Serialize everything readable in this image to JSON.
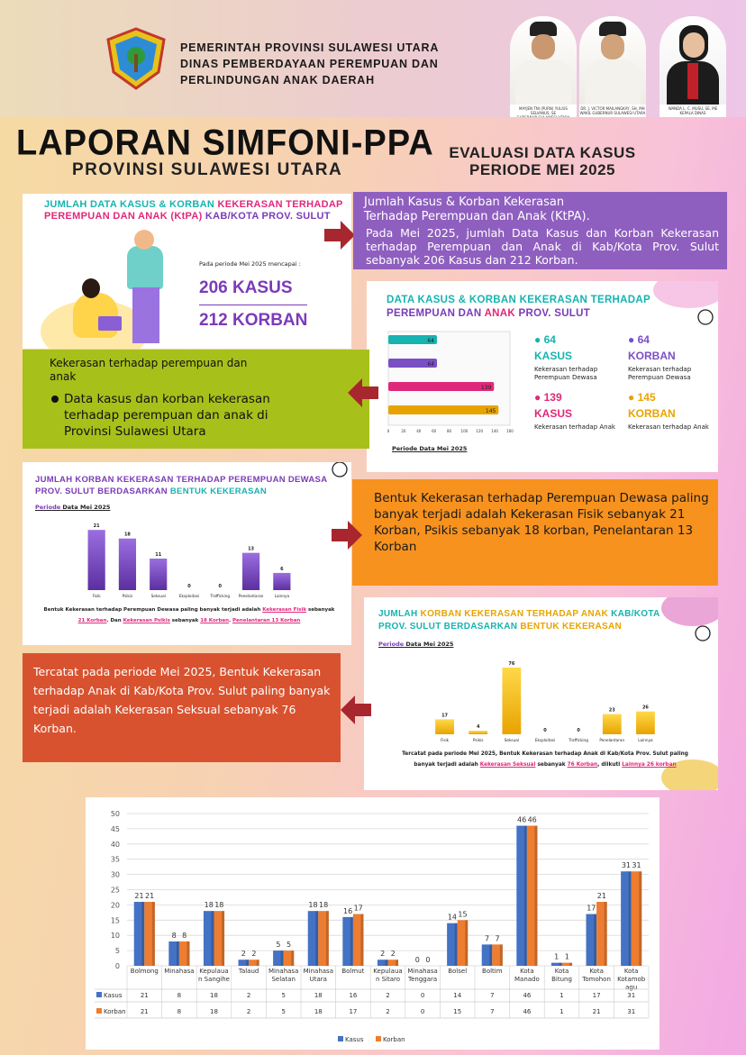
{
  "header": {
    "line1": "PEMERINTAH PROVINSI SULAWESI UTARA",
    "line2": "DINAS PEMBERDAYAAN PEREMPUAN DAN",
    "line3": "PERLINDUNGAN ANAK DAERAH",
    "officials": [
      {
        "name": "MAYJEN TNI (PURN) YULIUS SELVANUS, SE",
        "role": "GUBERNUR SULAWESI UTARA"
      },
      {
        "name": "DR. J. VICTOR MAILANGKAY, SH, MH",
        "role": "WAKIL GUBERNUR SULAWESI UTARA"
      },
      {
        "name": "WANDA L. C. MUSU, SE, ME",
        "role": "KEPALA DINAS"
      }
    ]
  },
  "title": {
    "main": "LAPORAN SIMFONI-PPA",
    "sub": "PROVINSI SULAWESI UTARA",
    "eval1": "EVALUASI DATA KASUS",
    "eval2": "PERIODE MEI 2025"
  },
  "card1": {
    "t1": "JUMLAH DATA KASUS & KORBAN ",
    "t2": "KEKERASAN TERHADAP",
    "t3": "PEREMPUAN DAN ANAK (",
    "t4": "KtPA",
    ")": ")",
    "t5": " KAB/KOTA PROV. SULUT",
    "period": "Pada periode Mei 2025 mencapai :",
    "kasus": "206 KASUS",
    "korban": "212 KORBAN"
  },
  "box1": {
    "title1": "Jumlah Kasus & Korban Kekerasan",
    "title2": "Terhadap Perempuan dan Anak (KtPA).",
    "body": "Pada Mei 2025, jumlah Data Kasus dan Korban Kekerasan terhadap Perempuan dan Anak di Kab/Kota Prov. Sulut sebanyak 206 Kasus dan 212 Korban."
  },
  "card2": {
    "t1": "DATA KASUS & KORBAN KEKERASAN TERHADAP",
    "t2": "PEREMPUAN",
    "t3": " DAN ",
    "t4": "ANAK",
    "t5": " PROV. SULUT",
    "period": "Periode Data Mei 2025",
    "stats": [
      {
        "num": "64",
        "head": "KASUS",
        "desc": "Kekerasan terhadap Perempuan Dewasa",
        "color": "#17b3b0"
      },
      {
        "num": "64",
        "head": "KORBAN",
        "desc": "Kekerasan terhadap Perempuan Dewasa",
        "color": "#7a4fc4"
      },
      {
        "num": "139",
        "head": "KASUS",
        "desc": "Kekerasan terhadap Anak",
        "color": "#e0287a"
      },
      {
        "num": "145",
        "head": "KORBAN",
        "desc": "Kekerasan terhadap Anak",
        "color": "#e8a300"
      }
    ],
    "ticks": [
      "0",
      "20",
      "40",
      "60",
      "80",
      "100",
      "120",
      "140",
      "160"
    ]
  },
  "box2": {
    "l1": "Kekerasan  terhadap perempuan dan",
    "l2": "anak",
    "bullet": "Data kasus dan korban kekerasan terhadap perempuan dan anak di Provinsi Sulawesi Utara"
  },
  "card3": {
    "t1": "JUMLAH KORBAN KEKERASAN TERHADAP PEREMPUAN DEWASA",
    "t2": "PROV. SULUT BERDASARKAN ",
    "t3": "BENTUK KEKERASAN",
    "period1": "Periode",
    "period2": " Data Mei 2025",
    "foot1": "Bentuk Kekerasan terhadap Perempuan Dewasa paling banyak terjadi adalah ",
    "foot2": "Kekerasan Fisik",
    "foot3": " sebanyak",
    "foot4": "21 Korban",
    "foot5": ". Dan ",
    "foot6": "Kekerasan Psikis",
    "foot7": " sebanyak ",
    "foot8": "18 Korban",
    "foot9": ". ",
    "foot10": "Penelantaran 13 Korban"
  },
  "box3": {
    "body": "Bentuk Kekerasan terhadap Perempuan Dewasa paling banyak terjadi adalah Kekerasan Fisik sebanyak 21 Korban, Psikis sebanyak 18 korban, Penelantaran 13 Korban"
  },
  "card4": {
    "t1": "JUMLAH ",
    "t2": "KORBAN KEKERASAN TERHADAP ANAK ",
    "t3": "KAB/KOTA",
    "t4": "PROV. SULUT BERDASARKAN ",
    "t5": "BENTUK KEKERASAN",
    "period1": "Periode",
    "period2": " Data Mei 2025",
    "foot1": "Tercatat pada periode Mei 2025, Bentuk Kekerasan terhadap Anak di Kab/Kota Prov. Sulut paling",
    "foot2": "banyak terjadi adalah ",
    "foot3": "Kekerasan Seksual",
    "foot4": " sebanyak ",
    "foot5": "76 Korban",
    "foot6": ", diikuti ",
    "foot7": "Lainnya 26 korban"
  },
  "box4": {
    "body": "Tercatat pada periode Mei 2025, Bentuk Kekerasan terhadap Anak di Kab/Kota Prov. Sulut paling banyak terjadi adalah Kekerasan Seksual sebanyak 76 Korban."
  },
  "colors": {
    "purple": "#7a3bb8",
    "teal": "#17b3b0",
    "pink": "#e0287a",
    "gold": "#e8a300",
    "olive": "#a8c01a",
    "orange": "#f7921e",
    "red": "#d9522f",
    "kasus": "#4472c4",
    "korban": "#ed7d31"
  },
  "chart_data": [
    {
      "type": "bar",
      "title": "DATA KASUS & KORBAN KEKERASAN TERHADAP PEREMPUAN DAN ANAK PROV. SULUT",
      "orientation": "horizontal",
      "values": [
        64,
        64,
        139,
        145
      ],
      "colors": [
        "#17b3b0",
        "#7a4fc4",
        "#e0287a",
        "#e8a300"
      ],
      "xlim": [
        0,
        160
      ]
    },
    {
      "type": "bar",
      "title": "JUMLAH KORBAN KEKERASAN TERHADAP PEREMPUAN DEWASA PROV. SULUT BERDASARKAN BENTUK KEKERASAN",
      "categories": [
        "Fisik",
        "Psikis",
        "Seksual",
        "Eksploitasi",
        "Trafficking",
        "Penelantaran",
        "Lainnya"
      ],
      "values": [
        21,
        18,
        11,
        0,
        0,
        13,
        6
      ]
    },
    {
      "type": "bar",
      "title": "JUMLAH KORBAN KEKERASAN TERHADAP ANAK KAB/KOTA PROV. SULUT BERDASARKAN BENTUK KEKERASAN",
      "categories": [
        "Fisik",
        "Psikis",
        "Seksual",
        "Eksploitasi",
        "Trafficking",
        "Penelantaran",
        "Lainnya"
      ],
      "values": [
        17,
        4,
        76,
        0,
        0,
        23,
        26
      ]
    },
    {
      "type": "bar",
      "categories": [
        "Bolmong",
        "Minahasa",
        "Kepulaua n Sangihe",
        "Talaud",
        "Minahasa Selatan",
        "Minahasa Utara",
        "Bolmut",
        "Kepulaua n Sitaro",
        "Minahasa Tenggara",
        "Bolsel",
        "Boltim",
        "Kota Manado",
        "Kota Bitung",
        "Kota Tomohon",
        "Kota Kotamob agu"
      ],
      "series": [
        {
          "name": "Kasus",
          "values": [
            21,
            8,
            18,
            2,
            5,
            18,
            16,
            2,
            0,
            14,
            7,
            46,
            1,
            17,
            31
          ]
        },
        {
          "name": "Korban",
          "values": [
            21,
            8,
            18,
            2,
            5,
            18,
            17,
            2,
            0,
            15,
            7,
            46,
            1,
            21,
            31
          ]
        }
      ],
      "ylim": [
        0,
        50
      ],
      "yticks": [
        "0",
        "5",
        "10",
        "15",
        "20",
        "25",
        "30",
        "35",
        "40",
        "45",
        "50"
      ],
      "legend": "bottom",
      "grid": true
    }
  ]
}
